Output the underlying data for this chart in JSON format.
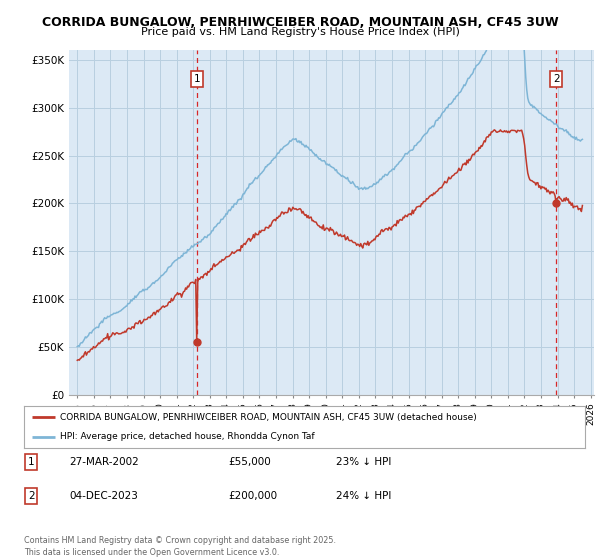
{
  "title1": "CORRIDA BUNGALOW, PENRHIWCEIBER ROAD, MOUNTAIN ASH, CF45 3UW",
  "title2": "Price paid vs. HM Land Registry's House Price Index (HPI)",
  "bg_color": "#ffffff",
  "plot_bg_color": "#dce9f5",
  "grid_color": "#b8cfe0",
  "hpi_color": "#7eb5d6",
  "price_color": "#c0392b",
  "dashed_color": "#d62728",
  "marker1_date_x": 2002.23,
  "marker2_date_x": 2023.92,
  "marker1_price": 55000,
  "marker2_price": 200000,
  "ylim_min": 0,
  "ylim_max": 360000,
  "xlim_min": 1994.5,
  "xlim_max": 2026.2,
  "legend_label1": "CORRIDA BUNGALOW, PENRHIWCEIBER ROAD, MOUNTAIN ASH, CF45 3UW (detached house)",
  "legend_label2": "HPI: Average price, detached house, Rhondda Cynon Taf",
  "footnote": "Contains HM Land Registry data © Crown copyright and database right 2025.\nThis data is licensed under the Open Government Licence v3.0.",
  "table_rows": [
    {
      "num": "1",
      "date": "27-MAR-2002",
      "price": "£55,000",
      "hpi": "23% ↓ HPI"
    },
    {
      "num": "2",
      "date": "04-DEC-2023",
      "price": "£200,000",
      "hpi": "24% ↓ HPI"
    }
  ]
}
